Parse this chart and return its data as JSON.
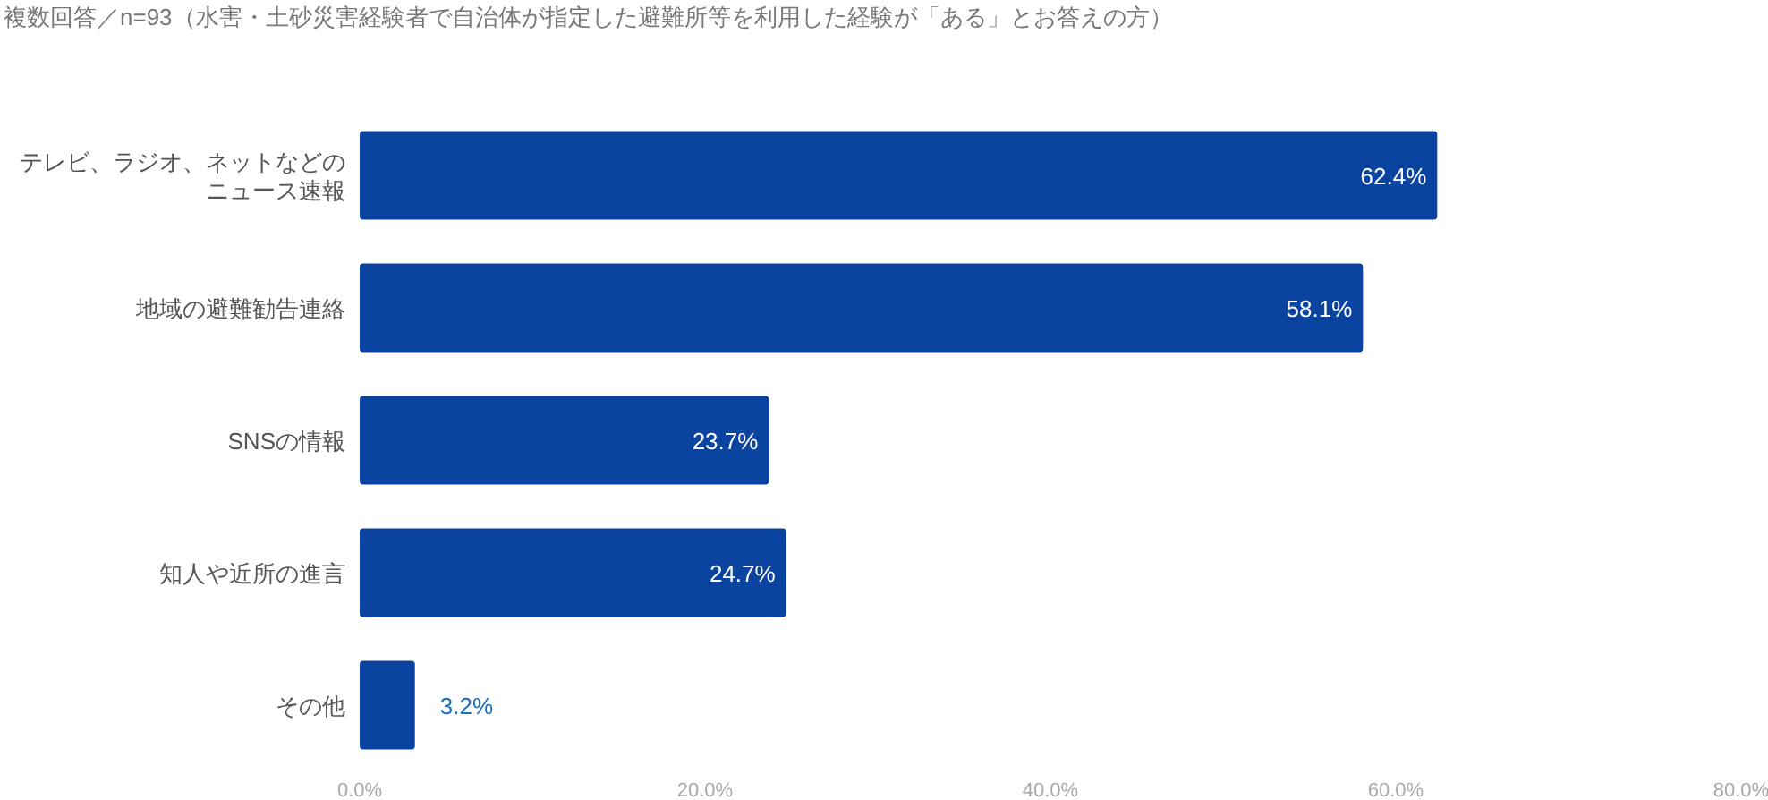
{
  "chart_data": {
    "type": "bar",
    "orientation": "horizontal",
    "title": "複数回答／n=93（水害・土砂災害経験者で自治体が指定した避難所等を利用した経験が「ある」とお答えの方）",
    "categories": [
      "テレビ、ラジオ、ネットなどのニュース速報",
      "地域の避難勧告連絡",
      "SNSの情報",
      "知人や近所の進言",
      "その他"
    ],
    "values": [
      62.4,
      58.1,
      23.7,
      24.7,
      3.2
    ],
    "color": "#0b44a0",
    "xlim": [
      0,
      80
    ],
    "xticks": [
      {
        "value": 0,
        "label": "0.0%"
      },
      {
        "value": 20,
        "label": "20.0%"
      },
      {
        "value": 40,
        "label": "40.0%"
      },
      {
        "value": 60,
        "label": "60.0%"
      },
      {
        "value": 80,
        "label": "80.0%"
      }
    ],
    "value_labels": [
      "62.4%",
      "58.1%",
      "23.7%",
      "24.7%",
      "3.2%"
    ],
    "grid": false
  }
}
